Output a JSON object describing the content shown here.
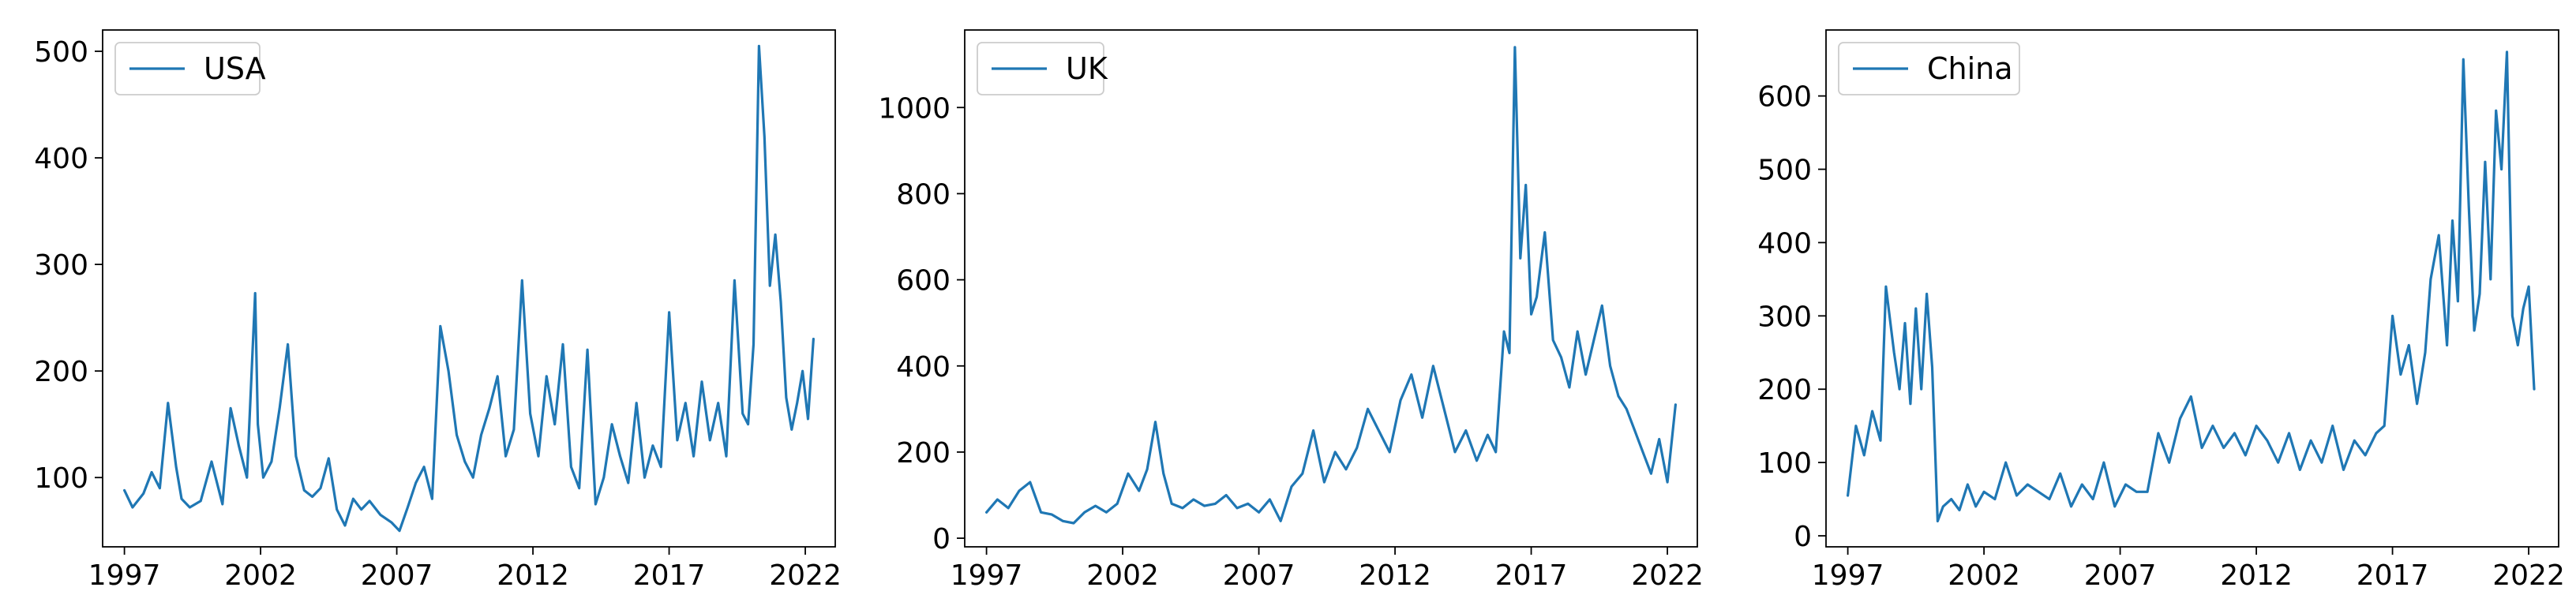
{
  "colors": {
    "series": "#1f77b4",
    "axes": "#000000",
    "legend_border": "#cccccc"
  },
  "chart_data": [
    {
      "type": "line",
      "legend_placement": "top-left",
      "grid": false,
      "xlim": [
        1996.2,
        2023.1
      ],
      "ylim": [
        35,
        520
      ],
      "xticks": [
        1997,
        2002,
        2007,
        2012,
        2017,
        2022
      ],
      "xtick_labels": [
        "1997",
        "2002",
        "2007",
        "2012",
        "2017",
        "2022"
      ],
      "yticks": [
        100,
        200,
        300,
        400,
        500
      ],
      "ytick_labels": [
        "100",
        "200",
        "300",
        "400",
        "500"
      ],
      "series": [
        {
          "name": "USA",
          "x": [
            1997.0,
            1997.3,
            1997.7,
            1998.0,
            1998.3,
            1998.6,
            1998.9,
            1999.1,
            1999.4,
            1999.8,
            2000.2,
            2000.6,
            2000.9,
            2001.2,
            2001.5,
            2001.8,
            2001.9,
            2002.1,
            2002.4,
            2002.7,
            2003.0,
            2003.3,
            2003.6,
            2003.9,
            2004.2,
            2004.5,
            2004.8,
            2005.1,
            2005.4,
            2005.7,
            2006.0,
            2006.4,
            2006.8,
            2007.1,
            2007.4,
            2007.7,
            2008.0,
            2008.3,
            2008.6,
            2008.9,
            2009.2,
            2009.5,
            2009.8,
            2010.1,
            2010.4,
            2010.7,
            2011.0,
            2011.3,
            2011.6,
            2011.9,
            2012.2,
            2012.5,
            2012.8,
            2013.1,
            2013.4,
            2013.7,
            2014.0,
            2014.3,
            2014.6,
            2014.9,
            2015.2,
            2015.5,
            2015.8,
            2016.1,
            2016.4,
            2016.7,
            2017.0,
            2017.3,
            2017.6,
            2017.9,
            2018.2,
            2018.5,
            2018.8,
            2019.1,
            2019.4,
            2019.7,
            2019.9,
            2020.1,
            2020.3,
            2020.5,
            2020.7,
            2020.9,
            2021.1,
            2021.3,
            2021.5,
            2021.7,
            2021.9,
            2022.1,
            2022.3
          ],
          "values": [
            88,
            72,
            85,
            105,
            90,
            170,
            110,
            80,
            72,
            78,
            115,
            75,
            165,
            130,
            100,
            273,
            150,
            100,
            115,
            165,
            225,
            120,
            88,
            82,
            90,
            118,
            70,
            55,
            80,
            70,
            78,
            65,
            58,
            50,
            72,
            95,
            110,
            80,
            242,
            200,
            140,
            115,
            100,
            140,
            165,
            195,
            120,
            145,
            285,
            160,
            120,
            195,
            150,
            225,
            110,
            90,
            220,
            75,
            100,
            150,
            120,
            95,
            170,
            100,
            130,
            110,
            255,
            135,
            170,
            120,
            190,
            135,
            170,
            120,
            285,
            160,
            150,
            225,
            505,
            420,
            280,
            328,
            265,
            175,
            145,
            170,
            200,
            155,
            230
          ]
        }
      ]
    },
    {
      "type": "line",
      "legend_placement": "top-left",
      "grid": false,
      "xlim": [
        1996.2,
        2023.1
      ],
      "ylim": [
        -20,
        1180
      ],
      "xticks": [
        1997,
        2002,
        2007,
        2012,
        2017,
        2022
      ],
      "xtick_labels": [
        "1997",
        "2002",
        "2007",
        "2012",
        "2017",
        "2022"
      ],
      "yticks": [
        0,
        200,
        400,
        600,
        800,
        1000
      ],
      "ytick_labels": [
        "0",
        "200",
        "400",
        "600",
        "800",
        "1000"
      ],
      "series": [
        {
          "name": "UK",
          "x": [
            1997.0,
            1997.4,
            1997.8,
            1998.2,
            1998.6,
            1999.0,
            1999.4,
            1999.8,
            2000.2,
            2000.6,
            2001.0,
            2001.4,
            2001.8,
            2002.2,
            2002.6,
            2002.9,
            2003.2,
            2003.5,
            2003.8,
            2004.2,
            2004.6,
            2005.0,
            2005.4,
            2005.8,
            2006.2,
            2006.6,
            2007.0,
            2007.4,
            2007.8,
            2008.2,
            2008.6,
            2009.0,
            2009.4,
            2009.8,
            2010.2,
            2010.6,
            2011.0,
            2011.4,
            2011.8,
            2012.2,
            2012.6,
            2013.0,
            2013.4,
            2013.8,
            2014.2,
            2014.6,
            2015.0,
            2015.4,
            2015.7,
            2016.0,
            2016.2,
            2016.4,
            2016.6,
            2016.8,
            2017.0,
            2017.2,
            2017.5,
            2017.8,
            2018.1,
            2018.4,
            2018.7,
            2019.0,
            2019.3,
            2019.6,
            2019.9,
            2020.2,
            2020.5,
            2020.8,
            2021.1,
            2021.4,
            2021.7,
            2022.0,
            2022.3
          ],
          "values": [
            60,
            90,
            70,
            110,
            130,
            60,
            55,
            40,
            35,
            60,
            75,
            60,
            80,
            150,
            110,
            160,
            270,
            150,
            80,
            70,
            90,
            75,
            80,
            100,
            70,
            80,
            60,
            90,
            40,
            120,
            150,
            250,
            130,
            200,
            160,
            210,
            300,
            250,
            200,
            320,
            380,
            280,
            400,
            300,
            200,
            250,
            180,
            240,
            200,
            480,
            430,
            1140,
            650,
            820,
            520,
            560,
            710,
            460,
            420,
            350,
            480,
            380,
            460,
            540,
            400,
            330,
            300,
            250,
            200,
            150,
            230,
            130,
            310
          ]
        }
      ]
    },
    {
      "type": "line",
      "legend_placement": "top-left",
      "grid": false,
      "xlim": [
        1996.2,
        2023.1
      ],
      "ylim": [
        -15,
        690
      ],
      "xticks": [
        1997,
        2002,
        2007,
        2012,
        2017,
        2022
      ],
      "xtick_labels": [
        "1997",
        "2002",
        "2007",
        "2012",
        "2017",
        "2022"
      ],
      "yticks": [
        0,
        100,
        200,
        300,
        400,
        500,
        600
      ],
      "ytick_labels": [
        "0",
        "100",
        "200",
        "300",
        "400",
        "500",
        "600"
      ],
      "series": [
        {
          "name": "China",
          "x": [
            1997.0,
            1997.3,
            1997.6,
            1997.9,
            1998.2,
            1998.4,
            1998.7,
            1998.9,
            1999.1,
            1999.3,
            1999.5,
            1999.7,
            1999.9,
            2000.1,
            2000.3,
            2000.5,
            2000.8,
            2001.1,
            2001.4,
            2001.7,
            2002.0,
            2002.4,
            2002.8,
            2003.2,
            2003.6,
            2004.0,
            2004.4,
            2004.8,
            2005.2,
            2005.6,
            2006.0,
            2006.4,
            2006.8,
            2007.2,
            2007.6,
            2008.0,
            2008.4,
            2008.8,
            2009.2,
            2009.6,
            2010.0,
            2010.4,
            2010.8,
            2011.2,
            2011.6,
            2012.0,
            2012.4,
            2012.8,
            2013.2,
            2013.6,
            2014.0,
            2014.4,
            2014.8,
            2015.2,
            2015.6,
            2016.0,
            2016.4,
            2016.7,
            2017.0,
            2017.3,
            2017.6,
            2017.9,
            2018.2,
            2018.4,
            2018.7,
            2019.0,
            2019.2,
            2019.4,
            2019.6,
            2019.8,
            2020.0,
            2020.2,
            2020.4,
            2020.6,
            2020.8,
            2021.0,
            2021.2,
            2021.4,
            2021.6,
            2021.8,
            2022.0,
            2022.2
          ],
          "values": [
            55,
            150,
            110,
            170,
            130,
            340,
            250,
            200,
            290,
            180,
            310,
            200,
            330,
            230,
            20,
            40,
            50,
            35,
            70,
            40,
            60,
            50,
            100,
            55,
            70,
            60,
            50,
            85,
            40,
            70,
            50,
            100,
            40,
            70,
            60,
            60,
            140,
            100,
            160,
            190,
            120,
            150,
            120,
            140,
            110,
            150,
            130,
            100,
            140,
            90,
            130,
            100,
            150,
            90,
            130,
            110,
            140,
            150,
            300,
            220,
            260,
            180,
            250,
            350,
            410,
            260,
            430,
            320,
            650,
            450,
            280,
            330,
            510,
            350,
            580,
            500,
            660,
            300,
            260,
            310,
            340,
            200
          ]
        }
      ]
    }
  ]
}
